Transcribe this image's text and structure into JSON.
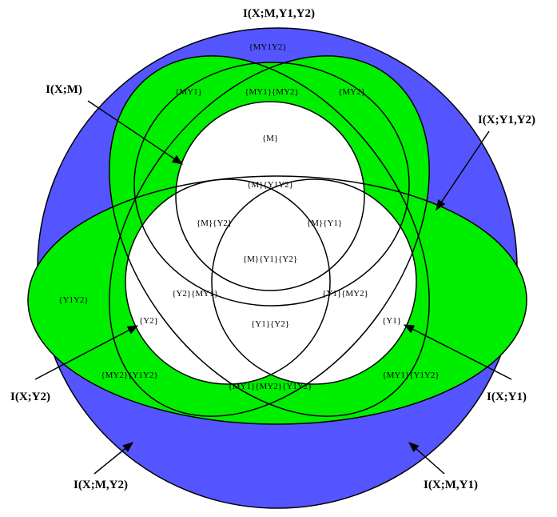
{
  "colors": {
    "outer_fill": "#5555ff",
    "pair_fill": "#00ee00",
    "inner_fill": "#ffffff",
    "stroke": "#000000"
  },
  "titles": {
    "outer": "I(X;M,Y1,Y2)",
    "x_m": "I(X;M)",
    "x_y1_y2": "I(X;Y1,Y2)",
    "x_y2": "I(X;Y2)",
    "x_y1": "I(X;Y1)",
    "x_m_y2": "I(X;M,Y2)",
    "x_m_y1": "I(X;M,Y1)"
  },
  "regions": {
    "my1y2": "{MY1Y2}",
    "my1": "{MY1}",
    "my1_my2": "{MY1}{MY2}",
    "my2": "{MY2}",
    "m": "{M}",
    "m_y1y2": "{M}{Y1Y2}",
    "m_y2": "{M}{Y2}",
    "m_y1": "{M}{Y1}",
    "m_y1_y2": "{M}{Y1}{Y2}",
    "y1y2": "{Y1Y2}",
    "y2_my1": "{Y2}{MY1}",
    "y1_my2": "{Y1}{MY2}",
    "y2": "{Y2}",
    "y1_y2": "{Y1}{Y2}",
    "y1": "{Y1}",
    "my2_y1y2": "{MY2}{Y1Y2}",
    "my1_y1y2": "{MY1}{Y1Y2}",
    "my1_my2_y1y2": "{MY1}{MY2}{Y1Y2}"
  }
}
